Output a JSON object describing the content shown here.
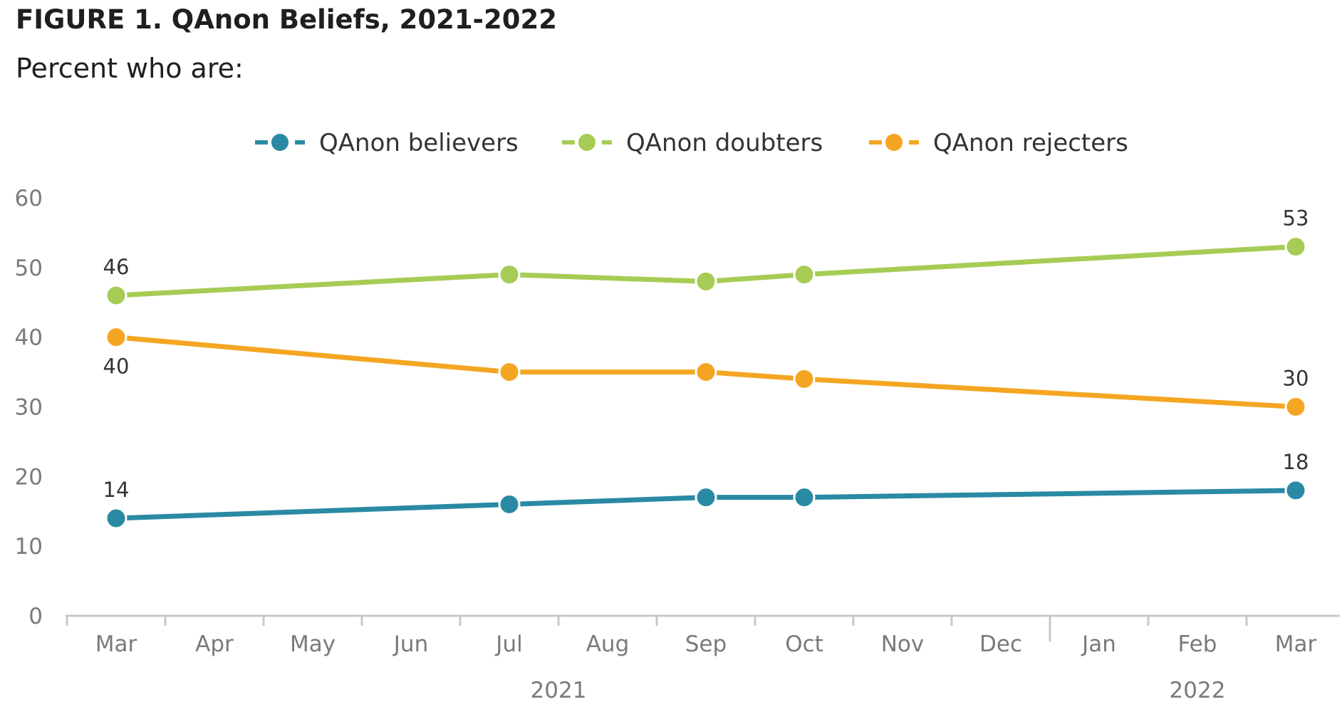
{
  "figure": {
    "title": "FIGURE 1.  QAnon Beliefs, 2021-2022",
    "subtitle": "Percent who are:"
  },
  "chart_data": {
    "type": "line",
    "title": "FIGURE 1.  QAnon Beliefs, 2021-2022",
    "subtitle": "Percent who are:",
    "xlabel": "",
    "ylabel": "",
    "ylim": [
      0,
      60
    ],
    "yticks": [
      0,
      10,
      20,
      30,
      40,
      50,
      60
    ],
    "grid": false,
    "legend_position": "top",
    "month_ticks": [
      "Mar",
      "Apr",
      "May",
      "Jun",
      "Jul",
      "Aug",
      "Sep",
      "Oct",
      "Nov",
      "Dec",
      "Jan",
      "Feb",
      "Mar"
    ],
    "year_groups": [
      {
        "label": "2021",
        "from": 0,
        "to": 9
      },
      {
        "label": "2022",
        "from": 10,
        "to": 12
      }
    ],
    "x": [
      "Mar 2021",
      "Jul 2021",
      "Sep 2021",
      "Oct 2021",
      "Mar 2022"
    ],
    "x_month_index": [
      0,
      4,
      6,
      7,
      12
    ],
    "series": [
      {
        "name": "QAnon believers",
        "color": "#2a8aa3",
        "values": [
          14,
          16,
          17,
          17,
          18
        ],
        "labeled": [
          14,
          null,
          null,
          null,
          18
        ],
        "label_side": "above"
      },
      {
        "name": "QAnon doubters",
        "color": "#a6cc55",
        "values": [
          46,
          49,
          48,
          49,
          53
        ],
        "labeled": [
          46,
          null,
          null,
          null,
          53
        ],
        "label_side": "above"
      },
      {
        "name": "QAnon rejecters",
        "color": "#f4a623",
        "values": [
          40,
          35,
          35,
          34,
          30
        ],
        "labeled": [
          40,
          null,
          null,
          null,
          30
        ],
        "label_side_first": "below",
        "label_side_last": "above"
      }
    ]
  }
}
